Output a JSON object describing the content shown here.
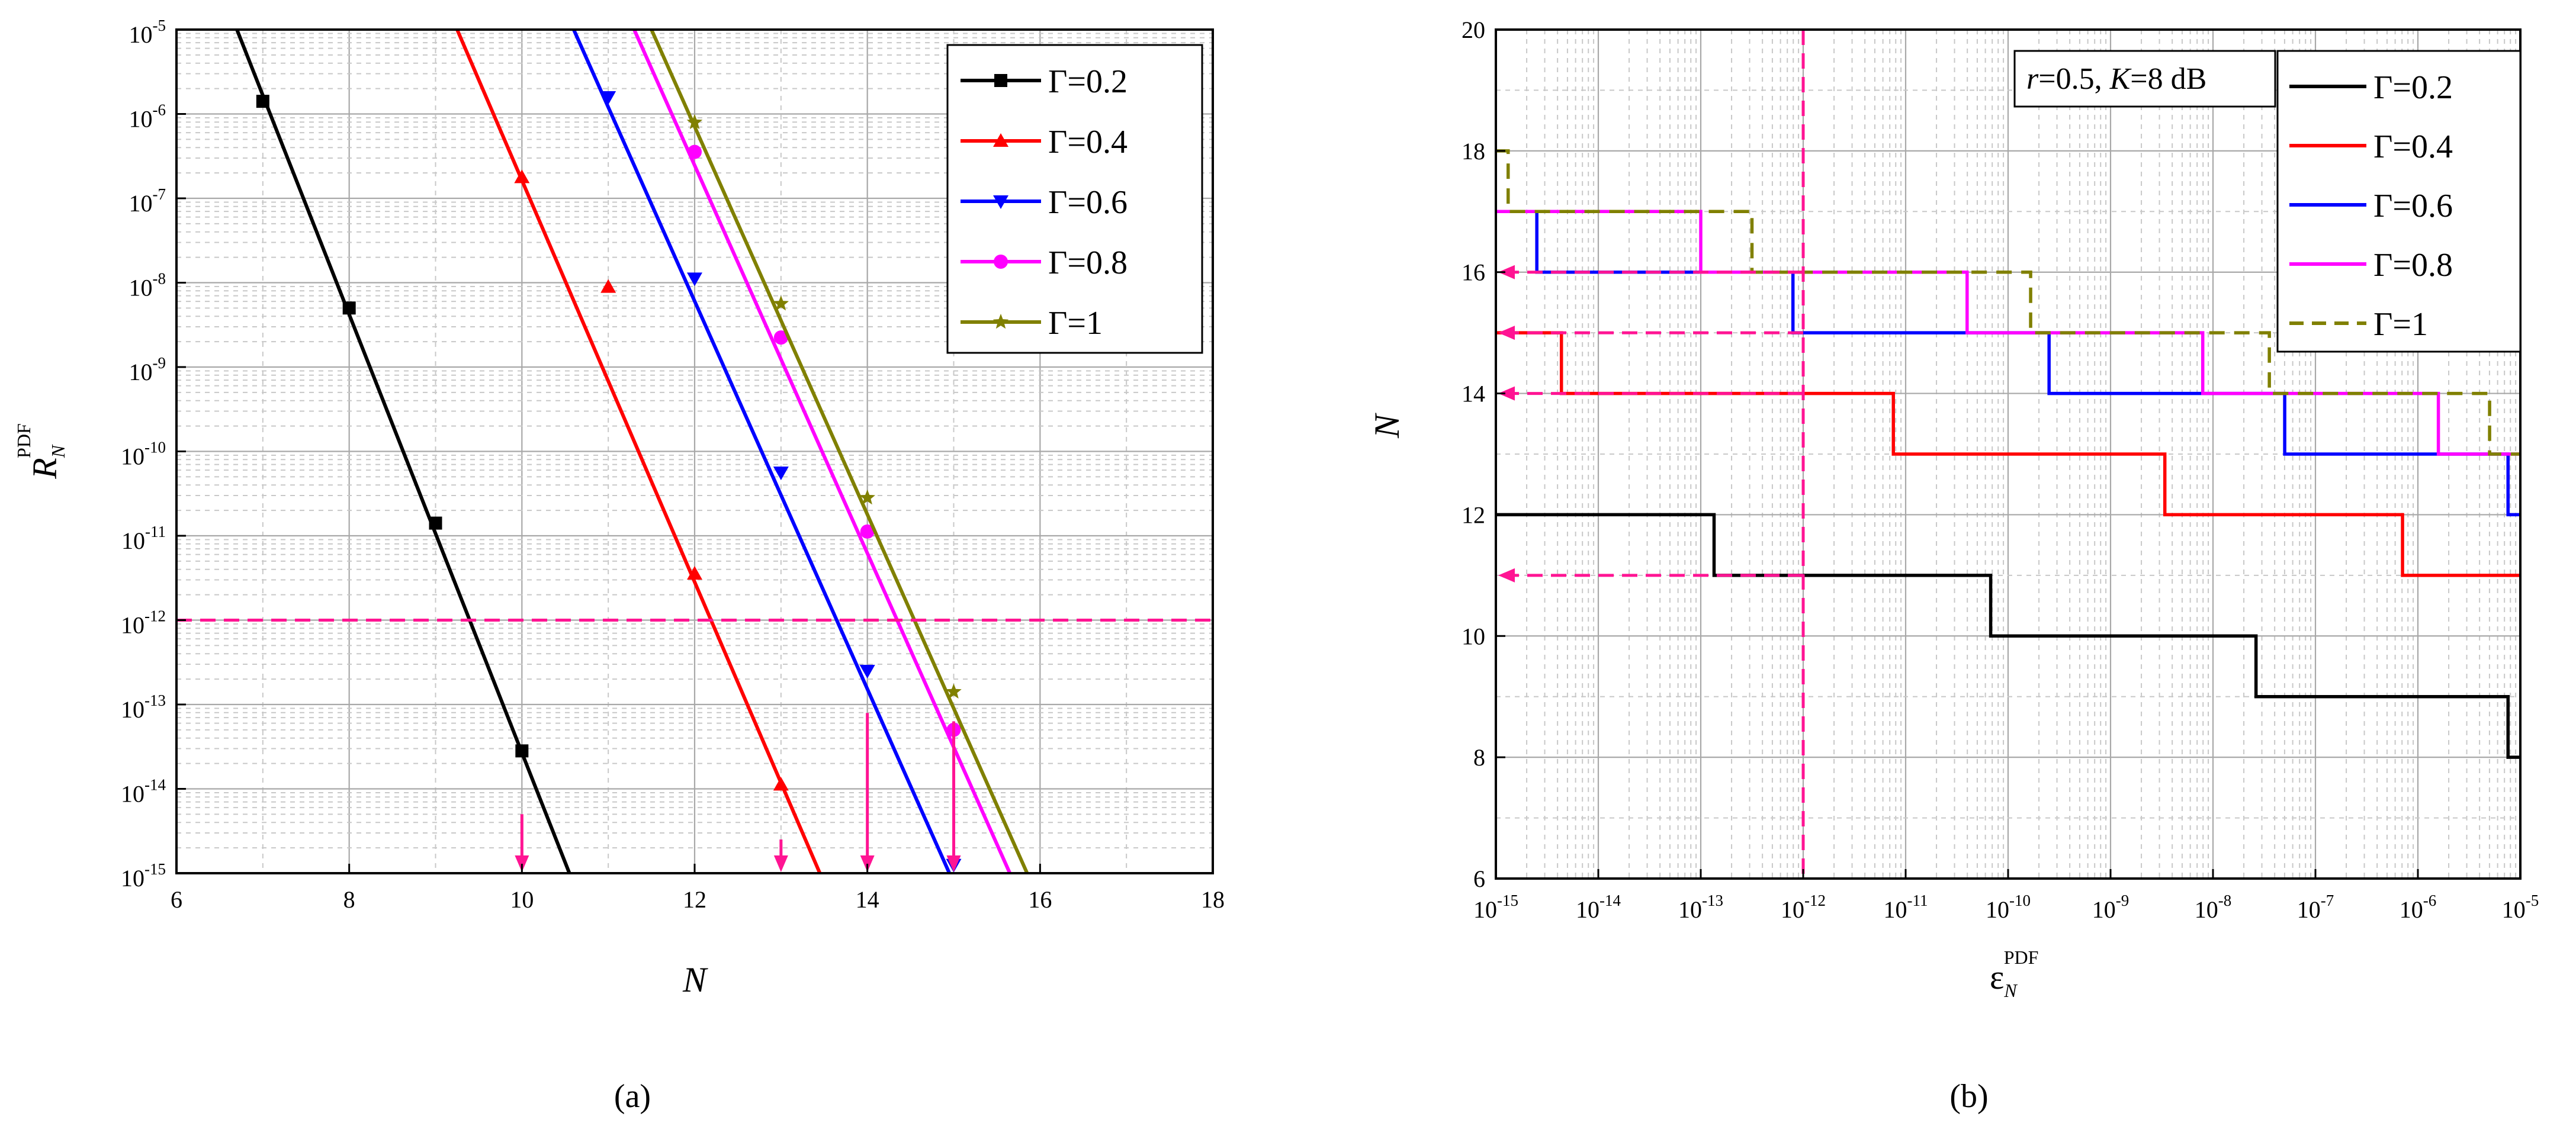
{
  "captions": {
    "a": "(a)",
    "b": "(b)"
  },
  "chart_data": [
    {
      "type": "line",
      "panel": "a",
      "caption": "(a)",
      "xlabel": "N",
      "ylabel": {
        "main": "R",
        "sub": "N",
        "sup": "PDF"
      },
      "xlim": [
        6,
        18
      ],
      "ylim_log10": [
        -15,
        -5
      ],
      "y_scale": "log",
      "x_ticks": [
        6,
        8,
        10,
        12,
        14,
        16,
        18
      ],
      "y_ticks_exp": [
        -5,
        -6,
        -7,
        -8,
        -9,
        -10,
        -11,
        -12,
        -13,
        -14,
        -15
      ],
      "grid": true,
      "legend_position": "top-right",
      "series": [
        {
          "name": "Γ=0.2",
          "color": "#000000",
          "marker": "square",
          "x": [
            7,
            8,
            9,
            10
          ],
          "y_log10": [
            -5.85,
            -8.3,
            -10.85,
            -13.55
          ],
          "line_x": [
            6.7,
            10.55
          ],
          "line_y_log10": [
            -5.0,
            -15.0
          ]
        },
        {
          "name": "Γ=0.4",
          "color": "#ff0000",
          "marker": "triangle-up",
          "x": [
            10,
            11,
            12,
            13
          ],
          "y_log10": [
            -6.75,
            -8.05,
            -11.45,
            -13.95
          ],
          "line_x": [
            9.25,
            13.45
          ],
          "line_y_log10": [
            -5.0,
            -15.0
          ]
        },
        {
          "name": "Γ=0.6",
          "color": "#0000ff",
          "marker": "triangle-down",
          "x": [
            11,
            12,
            13,
            14,
            15
          ],
          "y_log10": [
            -5.8,
            -7.95,
            -10.25,
            -12.6,
            -14.9
          ],
          "line_x": [
            10.6,
            14.95
          ],
          "line_y_log10": [
            -5.0,
            -15.0
          ]
        },
        {
          "name": "Γ=0.8",
          "color": "#ff00ff",
          "marker": "circle",
          "x": [
            12,
            13,
            14,
            15
          ],
          "y_log10": [
            -6.45,
            -8.65,
            -10.95,
            -13.3
          ],
          "line_x": [
            11.3,
            15.65
          ],
          "line_y_log10": [
            -5.0,
            -15.0
          ]
        },
        {
          "name": "Γ=1",
          "color": "#808000",
          "marker": "star",
          "x": [
            12,
            13,
            14,
            15
          ],
          "y_log10": [
            -6.1,
            -8.25,
            -10.55,
            -12.85
          ],
          "line_x": [
            11.5,
            15.85
          ],
          "line_y_log10": [
            -5.0,
            -15.0
          ]
        }
      ],
      "annotations": {
        "threshold_line_y_log10": -12,
        "arrow_x": [
          10,
          13,
          14,
          15
        ],
        "arrow_from_y_log10": [
          -14.3,
          -14.6,
          -13.1,
          -13.2
        ]
      }
    },
    {
      "type": "line",
      "panel": "b",
      "caption": "(b)",
      "xlabel": {
        "main": "ε",
        "sub": "N",
        "sup": "PDF"
      },
      "ylabel": "N",
      "x_scale": "log",
      "xlim_log10": [
        -15,
        -5
      ],
      "ylim": [
        6,
        20
      ],
      "x_ticks_exp": [
        -15,
        -14,
        -13,
        -12,
        -11,
        -10,
        -9,
        -8,
        -7,
        -6,
        -5
      ],
      "y_ticks": [
        6,
        8,
        10,
        12,
        14,
        16,
        18,
        20
      ],
      "grid": true,
      "legend_position": "top-right",
      "legend_title_text": {
        "r_label": "r",
        "r_value": "=0.5, ",
        "k_label": "K",
        "k_value": "=8 dB"
      },
      "series": [
        {
          "name": "Γ=0.2",
          "color": "#000000",
          "dash": "solid",
          "steps": [
            [
              -15,
              12
            ],
            [
              -12.87,
              11
            ],
            [
              -10.17,
              10
            ],
            [
              -7.58,
              9
            ],
            [
              -5.12,
              8
            ]
          ]
        },
        {
          "name": "Γ=0.4",
          "color": "#ff0000",
          "dash": "solid",
          "steps": [
            [
              -15,
              15
            ],
            [
              -14.36,
              14
            ],
            [
              -11.12,
              13
            ],
            [
              -8.47,
              12
            ],
            [
              -6.15,
              11
            ]
          ]
        },
        {
          "name": "Γ=0.6",
          "color": "#0000ff",
          "dash": "solid",
          "steps": [
            [
              -15,
              17
            ],
            [
              -14.6,
              16
            ],
            [
              -12.1,
              15
            ],
            [
              -9.6,
              14
            ],
            [
              -7.3,
              13
            ],
            [
              -5.12,
              12
            ]
          ]
        },
        {
          "name": "Γ=0.8",
          "color": "#ff00ff",
          "dash": "solid",
          "steps": [
            [
              -15,
              17
            ],
            [
              -13.0,
              16
            ],
            [
              -10.4,
              15
            ],
            [
              -8.1,
              14
            ],
            [
              -5.8,
              13
            ]
          ]
        },
        {
          "name": "Γ=1",
          "color": "#808000",
          "dash": "dashed",
          "steps": [
            [
              -15,
              18
            ],
            [
              -14.88,
              17
            ],
            [
              -12.5,
              16
            ],
            [
              -9.78,
              15
            ],
            [
              -7.45,
              14
            ],
            [
              -5.3,
              13
            ]
          ]
        }
      ],
      "annotations": {
        "vertical_line_x_log10": -12,
        "arrow_y": [
          16,
          15,
          14,
          11
        ]
      }
    }
  ]
}
